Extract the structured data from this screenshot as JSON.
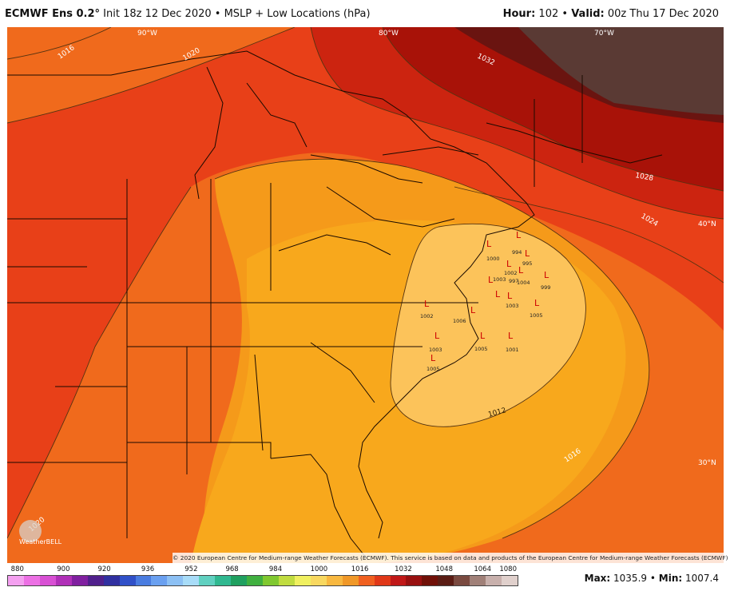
{
  "header": {
    "model": "ECMWF Ens 0.2°",
    "init": "Init 18z 12 Dec 2020",
    "product": "MSLP + Low Locations (hPa)",
    "hour_label": "Hour:",
    "hour_value": "102",
    "valid_label": "Valid:",
    "valid_value": "00z Thu 17 Dec 2020"
  },
  "map": {
    "lon_labels": [
      "90°W",
      "80°W",
      "70°W"
    ],
    "lat_labels": [
      "40°N",
      "30°N"
    ],
    "isobar_labels": [
      "1016",
      "1020",
      "1032",
      "1028",
      "1024",
      "1012",
      "1016",
      "1020"
    ],
    "low_markers": [
      {
        "label": "L",
        "value": "994"
      },
      {
        "label": "L",
        "value": "995"
      },
      {
        "label": "L",
        "value": "999"
      },
      {
        "label": "L",
        "value": "1000"
      },
      {
        "label": "L",
        "value": "1002"
      },
      {
        "label": "L",
        "value": "1004"
      },
      {
        "label": "L",
        "value": "1003"
      },
      {
        "label": "L",
        "value": "1005"
      },
      {
        "label": "L",
        "value": "1002"
      },
      {
        "label": "L",
        "value": "1006"
      },
      {
        "label": "L",
        "value": "1003"
      },
      {
        "label": "L",
        "value": "1005"
      },
      {
        "label": "L",
        "value": "1001"
      },
      {
        "label": "L",
        "value": "1003"
      },
      {
        "label": "L",
        "value": "1005"
      },
      {
        "label": "L",
        "value": "997"
      }
    ],
    "copyright": "© 2020 European Centre for Medium-range Weather Forecasts (ECMWF). This service is based on data and products of the European Centre for Medium-range Weather Forecasts (ECMWF)",
    "logo_text": "WeatherBELL"
  },
  "colorbar": {
    "labels": [
      "880",
      "900",
      "920",
      "936",
      "952",
      "968",
      "984",
      "1000",
      "1016",
      "1032",
      "1048",
      "1064",
      "1080"
    ],
    "colors": [
      "#f4a0f0",
      "#ec70e4",
      "#d850d4",
      "#b030b8",
      "#8020a0",
      "#50208c",
      "#3030a0",
      "#3050c8",
      "#4a7ce0",
      "#6aa0f0",
      "#8cc0f4",
      "#a8dcf8",
      "#60d0c0",
      "#30b890",
      "#20a060",
      "#40b040",
      "#80c830",
      "#c0dc40",
      "#f0f060",
      "#f8d860",
      "#f8b840",
      "#f09828",
      "#f06020",
      "#e03818",
      "#c01818",
      "#981010",
      "#701008",
      "#5a1c14",
      "#7a4a40",
      "#a08078",
      "#c8b0ac",
      "#e0d0cc"
    ],
    "max_label": "Max:",
    "max_value": "1035.9",
    "min_label": "Min:",
    "min_value": "1007.4"
  }
}
